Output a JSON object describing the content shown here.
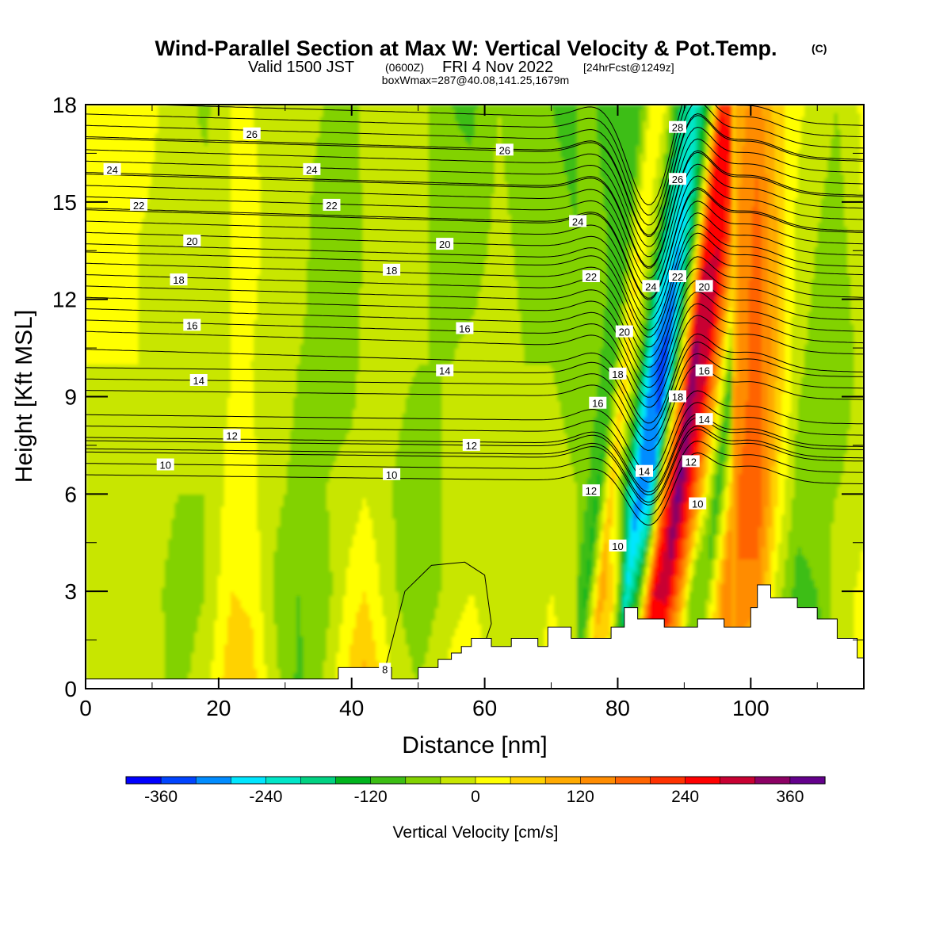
{
  "title": {
    "main": "Wind-Parallel Section at Max W: Vertical Velocity & Pot.Temp.",
    "copyright": "(C)",
    "valid_prefix": "Valid 1500 JST",
    "valid_utc": "(0600Z)",
    "valid_date": "FRI 4 Nov 2022",
    "forecast": "[24hrFcst@1249z]",
    "box": "boxWmax=287@40.08,141.25,1679m"
  },
  "chart_data": {
    "type": "heatmap",
    "xlabel": "Distance [nm]",
    "ylabel": "Height [Kft MSL]",
    "xlim": [
      0,
      117
    ],
    "ylim": [
      0,
      18
    ],
    "x_ticks": [
      0,
      20,
      40,
      60,
      80,
      100
    ],
    "y_ticks": [
      0,
      3,
      6,
      9,
      12,
      15,
      18
    ],
    "colorbar": {
      "label": "Vertical Velocity [cm/s]",
      "range": [
        -400,
        400
      ],
      "tick_values": [
        -360,
        -240,
        -120,
        0,
        120,
        240,
        360
      ],
      "tick_labels": [
        "-360",
        "-240",
        "-120",
        "0",
        "120",
        "240",
        "360"
      ],
      "colors": [
        "#0000ff",
        "#0044ff",
        "#008cff",
        "#00e6ff",
        "#00e6c8",
        "#00d282",
        "#00b41e",
        "#3cbe14",
        "#82d200",
        "#c8e600",
        "#ffff00",
        "#ffd200",
        "#ffaa00",
        "#ff8c00",
        "#ff6400",
        "#ff3200",
        "#ff0000",
        "#c80032",
        "#8c0064",
        "#64008c"
      ]
    },
    "columns": [
      {
        "x": 0,
        "w": [
          -15,
          -5,
          0,
          0,
          10,
          15
        ]
      },
      {
        "x": 8,
        "w": [
          -20,
          -10,
          -10,
          0,
          0,
          20
        ]
      },
      {
        "x": 14,
        "w": [
          -50,
          -60,
          -40,
          -30,
          -20,
          -20
        ]
      },
      {
        "x": 18,
        "w": [
          -20,
          -40,
          -40,
          -40,
          -20,
          -50
        ]
      },
      {
        "x": 22,
        "w": [
          80,
          40,
          20,
          0,
          0,
          0
        ]
      },
      {
        "x": 25,
        "w": [
          60,
          30,
          10,
          0,
          10,
          0
        ]
      },
      {
        "x": 28,
        "w": [
          -20,
          -40,
          -30,
          -20,
          -10,
          -10
        ]
      },
      {
        "x": 32,
        "w": [
          -90,
          -80,
          -50,
          -40,
          -20,
          -20
        ]
      },
      {
        "x": 36,
        "w": [
          -30,
          -60,
          -40,
          -60,
          -70,
          -40
        ]
      },
      {
        "x": 40,
        "w": [
          60,
          20,
          -20,
          -60,
          -80,
          -60
        ]
      },
      {
        "x": 42,
        "w": [
          100,
          40,
          0,
          -20,
          -30,
          -20
        ]
      },
      {
        "x": 46,
        "w": [
          0,
          -30,
          -40,
          -30,
          -30,
          -20
        ]
      },
      {
        "x": 50,
        "w": [
          -40,
          -80,
          -60,
          -40,
          -30,
          -20
        ]
      },
      {
        "x": 55,
        "w": [
          20,
          -20,
          -30,
          -40,
          -60,
          -80
        ]
      },
      {
        "x": 58,
        "w": [
          40,
          0,
          -10,
          -30,
          -60,
          -90
        ]
      },
      {
        "x": 62,
        "w": [
          -30,
          -30,
          -20,
          -20,
          -30,
          -40
        ]
      },
      {
        "x": 66,
        "w": [
          -40,
          -20,
          -30,
          -40,
          -50,
          -60
        ]
      },
      {
        "x": 70,
        "w": [
          20,
          0,
          -20,
          -40,
          -60,
          -80
        ]
      },
      {
        "x": 74,
        "w": [
          -20,
          -30,
          -40,
          -60,
          -80,
          -100
        ]
      },
      {
        "x": 77,
        "w": [
          -90,
          -130,
          -130,
          -110,
          -100,
          -80
        ]
      },
      {
        "x": 79,
        "w": [
          60,
          100,
          80,
          60,
          40,
          40
        ]
      },
      {
        "x": 81,
        "w": [
          20,
          60,
          -120,
          -80,
          -40,
          -10
        ]
      },
      {
        "x": 83,
        "w": [
          -40,
          -240,
          -320,
          -300,
          -200,
          -160
        ]
      },
      {
        "x": 85,
        "w": [
          60,
          -100,
          -260,
          -360,
          -280,
          -220
        ]
      },
      {
        "x": 87,
        "w": [
          240,
          280,
          160,
          -40,
          -120,
          -120
        ]
      },
      {
        "x": 89,
        "w": [
          120,
          300,
          380,
          340,
          260,
          240
        ]
      },
      {
        "x": 91,
        "w": [
          60,
          140,
          220,
          300,
          280,
          230
        ]
      },
      {
        "x": 93,
        "w": [
          -40,
          -80,
          40,
          100,
          140,
          120
        ]
      },
      {
        "x": 95,
        "w": [
          -20,
          -60,
          -120,
          -100,
          -90,
          -60
        ]
      },
      {
        "x": 98,
        "w": [
          80,
          160,
          160,
          120,
          120,
          100
        ]
      },
      {
        "x": 101,
        "w": [
          40,
          140,
          200,
          190,
          180,
          140
        ]
      },
      {
        "x": 104,
        "w": [
          -30,
          -20,
          40,
          80,
          80,
          60
        ]
      },
      {
        "x": 107,
        "w": [
          -80,
          -100,
          -60,
          -30,
          -10,
          10
        ]
      },
      {
        "x": 110,
        "w": [
          -120,
          -80,
          -50,
          -60,
          -40,
          -20
        ]
      },
      {
        "x": 113,
        "w": [
          -20,
          -20,
          -40,
          -80,
          -60,
          -40
        ]
      },
      {
        "x": 117,
        "w": [
          20,
          10,
          -10,
          -20,
          0,
          10
        ]
      }
    ],
    "column_heights_kft": [
      0,
      3,
      6,
      10,
      14,
      18
    ],
    "terrain": {
      "x": [
        0,
        38,
        38,
        46,
        46,
        50,
        50,
        53,
        53,
        55,
        55,
        56.5,
        56.5,
        58,
        58,
        61,
        61,
        64,
        64,
        68,
        68,
        69.5,
        69.5,
        73,
        73,
        79,
        79,
        81,
        81,
        83,
        83,
        87,
        87,
        92,
        92,
        96,
        96,
        100,
        100,
        101,
        101,
        103,
        103,
        107,
        107,
        110,
        110,
        113,
        113,
        116,
        116,
        117
      ],
      "h": [
        0.3,
        0.3,
        0.65,
        0.65,
        0.3,
        0.3,
        0.65,
        0.65,
        0.9,
        0.9,
        1.1,
        1.1,
        1.3,
        1.3,
        1.55,
        1.55,
        1.3,
        1.3,
        1.55,
        1.55,
        1.3,
        1.3,
        1.9,
        1.9,
        1.55,
        1.55,
        1.9,
        1.9,
        2.5,
        2.5,
        2.15,
        2.15,
        1.9,
        1.9,
        2.15,
        2.15,
        1.9,
        1.9,
        2.5,
        2.5,
        3.2,
        3.2,
        2.8,
        2.8,
        2.5,
        2.5,
        2.15,
        2.15,
        1.55,
        1.55,
        0.95,
        0.95
      ]
    },
    "isentropes": [
      {
        "label": "8",
        "pts": [
          [
            46,
            0.6
          ],
          [
            47,
            0.9
          ]
        ]
      },
      {
        "label": "10",
        "base": 6.8,
        "label_at": [
          12,
          6.9
        ]
      },
      {
        "label": "12",
        "base": 7.6,
        "label_at": [
          22,
          7.8
        ]
      },
      {
        "label": "14",
        "base": 9.4,
        "label_at": [
          17,
          9.5
        ]
      },
      {
        "label": "16",
        "base": 11.0,
        "label_at": [
          16,
          11.2
        ]
      },
      {
        "label": "18",
        "base": 12.4,
        "label_at": [
          14,
          12.6
        ]
      },
      {
        "label": "20",
        "base": 13.7,
        "label_at": [
          16,
          13.8
        ]
      },
      {
        "label": "22",
        "base": 14.8,
        "label_at": [
          8,
          14.9
        ]
      },
      {
        "label": "24",
        "base": 15.9,
        "label_at": [
          4,
          16.0
        ]
      },
      {
        "label": "26",
        "base": 17.0,
        "label_at": [
          25,
          17.1
        ]
      }
    ],
    "contour_labels": [
      {
        "text": "26",
        "x": 25,
        "y": 17.1
      },
      {
        "text": "24",
        "x": 4,
        "y": 16.0
      },
      {
        "text": "24",
        "x": 34,
        "y": 16.0
      },
      {
        "text": "26",
        "x": 63,
        "y": 16.6
      },
      {
        "text": "22",
        "x": 8,
        "y": 14.9
      },
      {
        "text": "22",
        "x": 37,
        "y": 14.9
      },
      {
        "text": "20",
        "x": 16,
        "y": 13.8
      },
      {
        "text": "20",
        "x": 54,
        "y": 13.7
      },
      {
        "text": "24",
        "x": 74,
        "y": 14.4
      },
      {
        "text": "18",
        "x": 14,
        "y": 12.6
      },
      {
        "text": "18",
        "x": 46,
        "y": 12.9
      },
      {
        "text": "16",
        "x": 16,
        "y": 11.2
      },
      {
        "text": "16",
        "x": 57,
        "y": 11.1
      },
      {
        "text": "14",
        "x": 17,
        "y": 9.5
      },
      {
        "text": "14",
        "x": 54,
        "y": 9.8
      },
      {
        "text": "12",
        "x": 22,
        "y": 7.8
      },
      {
        "text": "12",
        "x": 58,
        "y": 7.5
      },
      {
        "text": "10",
        "x": 12,
        "y": 6.9
      },
      {
        "text": "10",
        "x": 46,
        "y": 6.6
      },
      {
        "text": "8",
        "x": 45,
        "y": 0.6
      },
      {
        "text": "22",
        "x": 76,
        "y": 12.7
      },
      {
        "text": "20",
        "x": 81,
        "y": 11.0
      },
      {
        "text": "18",
        "x": 80,
        "y": 9.7
      },
      {
        "text": "16",
        "x": 77,
        "y": 8.8
      },
      {
        "text": "12",
        "x": 76,
        "y": 6.1
      },
      {
        "text": "10",
        "x": 80,
        "y": 4.4
      },
      {
        "text": "28",
        "x": 89,
        "y": 17.3
      },
      {
        "text": "26",
        "x": 89,
        "y": 15.7
      },
      {
        "text": "24",
        "x": 85,
        "y": 12.4
      },
      {
        "text": "22",
        "x": 89,
        "y": 12.7
      },
      {
        "text": "20",
        "x": 93,
        "y": 12.4
      },
      {
        "text": "16",
        "x": 93,
        "y": 9.8
      },
      {
        "text": "18",
        "x": 89,
        "y": 9.0
      },
      {
        "text": "14",
        "x": 93,
        "y": 8.3
      },
      {
        "text": "14",
        "x": 84,
        "y": 6.7
      },
      {
        "text": "12",
        "x": 91,
        "y": 7.0
      },
      {
        "text": "10",
        "x": 92,
        "y": 5.7
      }
    ]
  }
}
